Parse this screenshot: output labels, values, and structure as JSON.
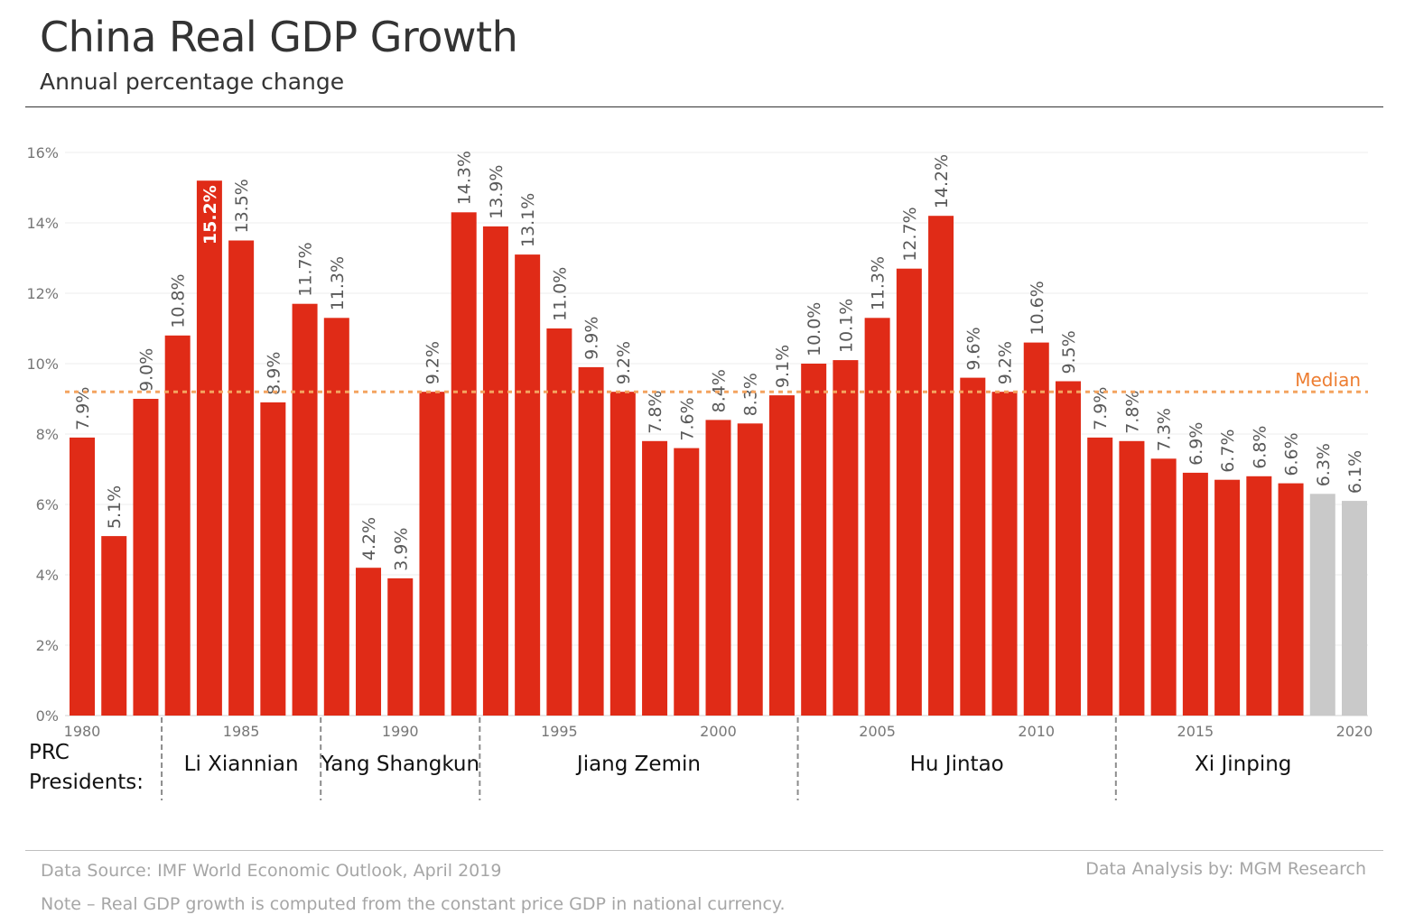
{
  "chart_data": {
    "type": "bar",
    "title": "China Real GDP Growth",
    "subtitle": "Annual percentage change",
    "categories": [
      1980,
      1981,
      1982,
      1983,
      1984,
      1985,
      1986,
      1987,
      1988,
      1989,
      1990,
      1991,
      1992,
      1993,
      1994,
      1995,
      1996,
      1997,
      1998,
      1999,
      2000,
      2001,
      2002,
      2003,
      2004,
      2005,
      2006,
      2007,
      2008,
      2009,
      2010,
      2011,
      2012,
      2013,
      2014,
      2015,
      2016,
      2017,
      2018,
      2019,
      2020
    ],
    "values": [
      7.9,
      5.1,
      9.0,
      10.8,
      15.2,
      13.5,
      8.9,
      11.7,
      11.3,
      4.2,
      3.9,
      9.2,
      14.3,
      13.9,
      13.1,
      11.0,
      9.9,
      9.2,
      7.8,
      7.6,
      8.4,
      8.3,
      9.1,
      10.0,
      10.1,
      11.3,
      12.7,
      14.2,
      9.6,
      9.2,
      10.6,
      9.5,
      7.9,
      7.8,
      7.3,
      6.9,
      6.7,
      6.8,
      6.6,
      6.3,
      6.1
    ],
    "projected_from": 2019,
    "x_tick_labels": [
      "1980",
      "1985",
      "1990",
      "1995",
      "2000",
      "2005",
      "2010",
      "2015",
      "2020"
    ],
    "y_tick_labels": [
      "0%",
      "2%",
      "4%",
      "6%",
      "8%",
      "10%",
      "12%",
      "14%",
      "16%"
    ],
    "ylim": [
      0,
      16
    ],
    "grid": true,
    "median": {
      "label": "Median",
      "value": 9.2
    },
    "colors": {
      "actual": "#e02b17",
      "projected": "#c9c9c9",
      "median": "#f4a460",
      "median_label": "#ed7d31"
    },
    "presidents_label": [
      "PRC",
      "Presidents:"
    ],
    "presidents": [
      {
        "name": "Li Xiannian",
        "from": 1983,
        "to": 1987
      },
      {
        "name": "Yang Shangkun",
        "from": 1988,
        "to": 1992
      },
      {
        "name": "Jiang Zemin",
        "from": 1993,
        "to": 2002
      },
      {
        "name": "Hu Jintao",
        "from": 2003,
        "to": 2012
      },
      {
        "name": "Xi Jinping",
        "from": 2013,
        "to": 2020
      }
    ]
  },
  "footer": {
    "source": "Data Source: IMF World Economic Outlook, April 2019",
    "note": "Note – Real GDP growth is computed from the constant price GDP in national currency.",
    "credit": "Data Analysis by: MGM Research"
  }
}
